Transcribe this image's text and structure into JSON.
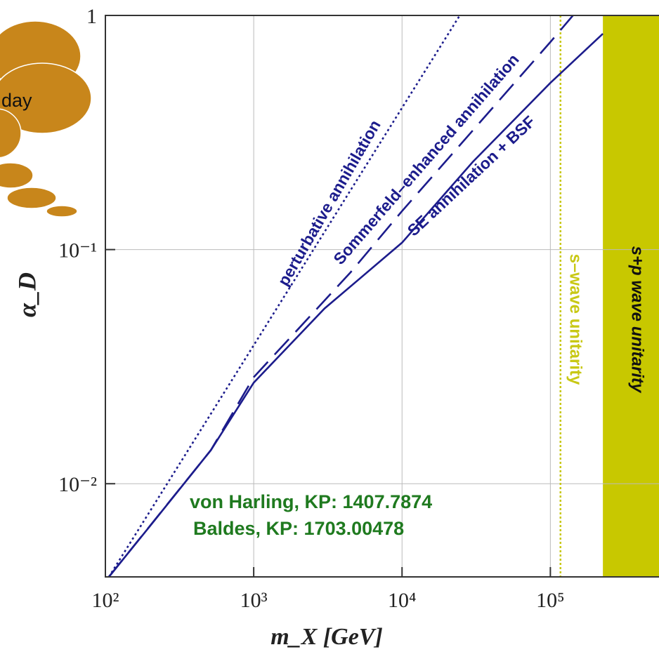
{
  "overlay_text": "day",
  "chart_data": {
    "type": "line",
    "log_x": true,
    "log_y": true,
    "grid": true,
    "x_label": "m_X [GeV]",
    "y_label": "α_D",
    "xlim": [
      100,
      540000
    ],
    "ylim": [
      0.004,
      1
    ],
    "xticks": [
      {
        "value": 100,
        "label": "10²"
      },
      {
        "value": 1000,
        "label": "10³"
      },
      {
        "value": 10000,
        "label": "10⁴"
      },
      {
        "value": 100000,
        "label": "10⁵"
      }
    ],
    "yticks": [
      {
        "value": 0.01,
        "label": "10⁻²"
      },
      {
        "value": 0.1,
        "label": "10⁻¹"
      },
      1
    ],
    "series": [
      {
        "name": "perturbative annihilation",
        "color": "#1c1c8c",
        "style": "dotted",
        "x": [
          105.6,
          1000,
          24500
        ],
        "values": [
          0.004,
          0.039,
          1
        ]
      },
      {
        "name": "Sommerfeld–enhanced annihilation",
        "color": "#1c1c8c",
        "style": "dashed",
        "x": [
          105.6,
          514,
          1000,
          4500,
          10000,
          100000,
          142000
        ],
        "values": [
          0.004,
          0.0139,
          0.0285,
          0.08,
          0.146,
          0.77,
          1
        ]
      },
      {
        "name": "SE annihilation + BSF",
        "color": "#1c1c8c",
        "style": "solid",
        "x": [
          105.6,
          200,
          514,
          1000,
          3000,
          10000,
          30000,
          100000,
          226000
        ],
        "values": [
          0.004,
          0.0066,
          0.0139,
          0.027,
          0.056,
          0.107,
          0.237,
          0.515,
          0.835
        ]
      }
    ],
    "vlines": [
      {
        "x": 117000,
        "label": "s–wave unitarity",
        "color": "#c8c814"
      }
    ],
    "bands": [
      {
        "x": [
          226000,
          540000
        ],
        "label": "s+p wave unitarity",
        "color": "#c8c800"
      }
    ],
    "annotations": [
      "von Harling, KP: 1407.7874",
      "Baldes, KP: 1703.00478"
    ]
  }
}
